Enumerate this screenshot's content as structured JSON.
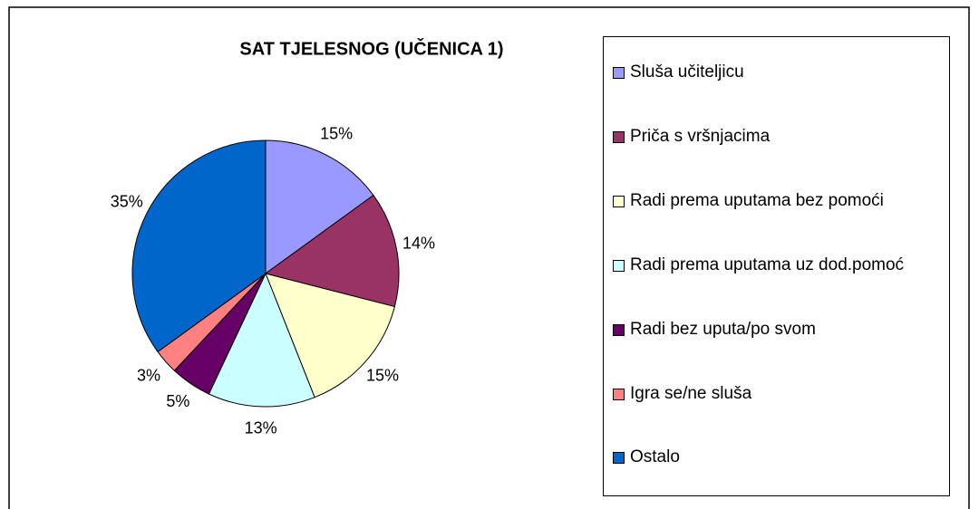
{
  "chart_data": {
    "type": "pie",
    "title": "SAT TJELESNOG (UČENICA 1)",
    "categories": [
      "Sluša učiteljicu",
      "Priča s vršnjacima",
      "Radi prema uputama bez pomoći",
      "Radi prema uputama uz dod.pomoć",
      "Radi bez uputa/po svom",
      "Igra se/ne sluša",
      "Ostalo"
    ],
    "values": [
      15,
      14,
      15,
      13,
      5,
      3,
      35
    ],
    "value_labels": [
      "15%",
      "14%",
      "15%",
      "13%",
      "5%",
      "3%",
      "35%"
    ],
    "colors": [
      "#9999ff",
      "#993366",
      "#ffffcc",
      "#ccffff",
      "#660066",
      "#ff8080",
      "#0066cc"
    ],
    "legend": "right"
  }
}
